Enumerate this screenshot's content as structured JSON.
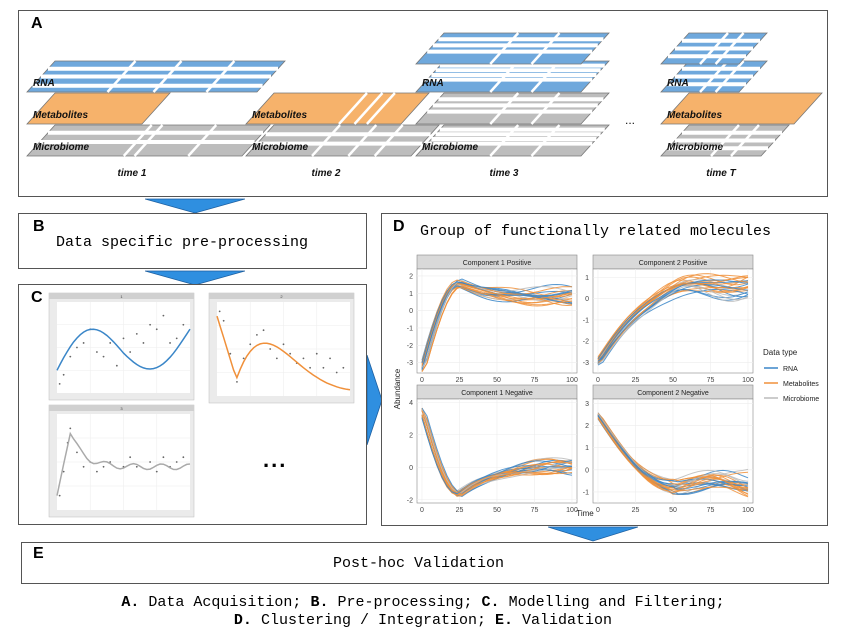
{
  "panel_a": {
    "label": "A",
    "layer_labels": {
      "rna": "RNA",
      "metabolites": "Metabolites",
      "microbiome": "Microbiome"
    },
    "time_labels": [
      "time 1",
      "time 2",
      "time 3",
      "time T"
    ],
    "ellipsis": "..."
  },
  "panel_b": {
    "label": "B",
    "title": "Data specific pre-processing"
  },
  "panel_c": {
    "label": "C",
    "mini_titles": [
      "1",
      "2",
      "3"
    ],
    "ellipsis": "..."
  },
  "panel_d": {
    "label": "D",
    "title": "Group of functionally related molecules",
    "y_axis_label": "Abundance",
    "x_axis_label": "Time",
    "facets": [
      "Component 1 Positive",
      "Component 2 Positive",
      "Component 1 Negative",
      "Component 2 Negative"
    ],
    "legend": {
      "title": "Data type",
      "items": [
        {
          "name": "RNA",
          "color": "#3a86c8"
        },
        {
          "name": "Metabolites",
          "color": "#f0903a"
        },
        {
          "name": "Microbiome",
          "color": "#bbbbbb"
        }
      ]
    },
    "x_ticks": [
      "0",
      "25",
      "50",
      "75",
      "100"
    ]
  },
  "panel_e": {
    "label": "E",
    "title": "Post-hoc Validation"
  },
  "caption": {
    "line1": [
      {
        "key": "A.",
        "text": "Data Acquisition;"
      },
      {
        "key": "B.",
        "text": "Pre-processing;"
      },
      {
        "key": "C.",
        "text": "Modelling and Filtering;"
      }
    ],
    "line2": [
      {
        "key": "D.",
        "text": "Clustering / Integration;"
      },
      {
        "key": "E.",
        "text": "Validation"
      }
    ]
  },
  "colors": {
    "rna": "#6fa8dc",
    "metabolites": "#f6b26b",
    "microbiome": "#bdbdbd",
    "arrow": "#2f8fe0"
  }
}
